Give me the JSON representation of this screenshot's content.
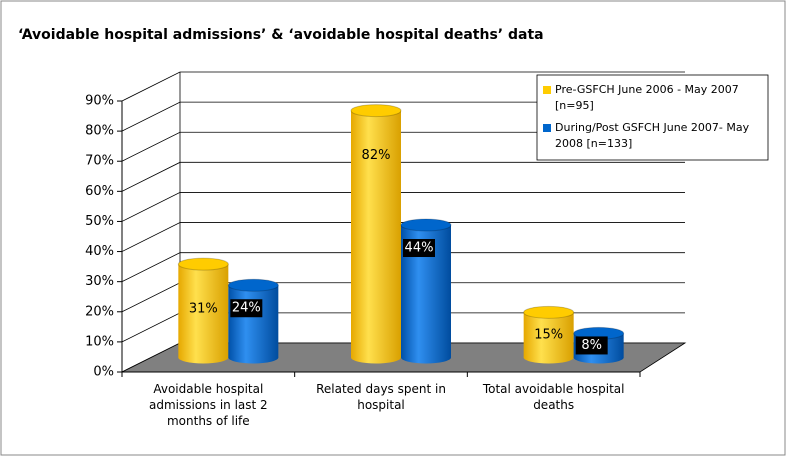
{
  "chart_data": {
    "type": "bar3d",
    "title": "‘Avoidable hospital admissions’ & ‘avoidable hospital deaths’ data",
    "categories": [
      "Avoidable hospital admissions in last 2 months of life",
      "Related days spent in hospital",
      "Total avoidable hospital deaths"
    ],
    "series": [
      {
        "name": "Pre-GSFCH June 2006 - May 2007 [n=95]",
        "color": "#FFCC00",
        "values": [
          31,
          82,
          15
        ],
        "value_labels": [
          "31%",
          "82%",
          "15%"
        ]
      },
      {
        "name": "During/Post GSFCH June 2007- May 2008 [n=133]",
        "color": "#0066CC",
        "values": [
          24,
          44,
          8
        ],
        "value_labels": [
          "24%",
          "44%",
          "8%"
        ]
      }
    ],
    "ylim": [
      0,
      90
    ],
    "yticks": [
      {
        "value": 0,
        "label": "0%"
      },
      {
        "value": 10,
        "label": "10%"
      },
      {
        "value": 20,
        "label": "20%"
      },
      {
        "value": 30,
        "label": "30%"
      },
      {
        "value": 40,
        "label": "40%"
      },
      {
        "value": 50,
        "label": "50%"
      },
      {
        "value": 60,
        "label": "60%"
      },
      {
        "value": 70,
        "label": "70%"
      },
      {
        "value": 80,
        "label": "80%"
      },
      {
        "value": 90,
        "label": "90%"
      }
    ],
    "grid": true,
    "legend": "upper right"
  }
}
